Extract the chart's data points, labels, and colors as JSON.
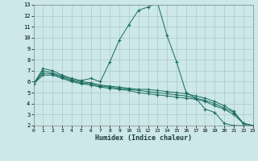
{
  "xlabel": "Humidex (Indice chaleur)",
  "ylabel": "",
  "bg_color": "#cce8e8",
  "grid_color": "#b0c8c8",
  "line_color": "#1a6b60",
  "xlim": [
    0,
    23
  ],
  "ylim": [
    2,
    13
  ],
  "xticks": [
    0,
    1,
    2,
    3,
    4,
    5,
    6,
    7,
    8,
    9,
    10,
    11,
    12,
    13,
    14,
    15,
    16,
    17,
    18,
    19,
    20,
    21,
    22,
    23
  ],
  "yticks": [
    2,
    3,
    4,
    5,
    6,
    7,
    8,
    9,
    10,
    11,
    12,
    13
  ],
  "lines": [
    {
      "x": [
        0,
        1,
        2,
        3,
        4,
        5,
        6,
        7,
        8,
        9,
        10,
        11,
        12,
        13,
        14,
        15,
        16,
        17,
        18,
        19,
        20,
        21,
        22,
        23
      ],
      "y": [
        5.8,
        7.2,
        7.0,
        6.6,
        6.3,
        6.1,
        6.3,
        6.0,
        7.8,
        9.8,
        11.2,
        12.5,
        12.8,
        13.2,
        10.2,
        7.8,
        5.0,
        4.5,
        3.5,
        3.2,
        2.2,
        2.0,
        2.0,
        2.0
      ]
    },
    {
      "x": [
        0,
        1,
        2,
        3,
        4,
        5,
        6,
        7,
        8,
        9,
        10,
        11,
        12,
        13,
        14,
        15,
        16,
        17,
        18,
        19,
        20,
        21,
        22,
        23
      ],
      "y": [
        5.8,
        7.0,
        6.8,
        6.5,
        6.2,
        6.0,
        5.9,
        5.7,
        5.6,
        5.5,
        5.4,
        5.3,
        5.3,
        5.2,
        5.1,
        5.0,
        4.9,
        4.7,
        4.5,
        4.2,
        3.8,
        3.3,
        2.2,
        2.0
      ]
    },
    {
      "x": [
        0,
        1,
        2,
        3,
        4,
        5,
        6,
        7,
        8,
        9,
        10,
        11,
        12,
        13,
        14,
        15,
        16,
        17,
        18,
        19,
        20,
        21,
        22,
        23
      ],
      "y": [
        5.8,
        6.8,
        6.7,
        6.4,
        6.1,
        5.9,
        5.8,
        5.6,
        5.5,
        5.4,
        5.3,
        5.2,
        5.1,
        5.0,
        4.9,
        4.8,
        4.7,
        4.5,
        4.3,
        4.0,
        3.6,
        3.2,
        2.2,
        2.0
      ]
    },
    {
      "x": [
        0,
        1,
        2,
        3,
        4,
        5,
        6,
        7,
        8,
        9,
        10,
        11,
        12,
        13,
        14,
        15,
        16,
        17,
        18,
        19,
        20,
        21,
        22,
        23
      ],
      "y": [
        5.8,
        6.6,
        6.6,
        6.3,
        6.0,
        5.8,
        5.7,
        5.5,
        5.4,
        5.3,
        5.2,
        5.0,
        4.9,
        4.8,
        4.7,
        4.6,
        4.5,
        4.4,
        4.2,
        3.8,
        3.5,
        3.0,
        2.2,
        2.0
      ]
    }
  ]
}
